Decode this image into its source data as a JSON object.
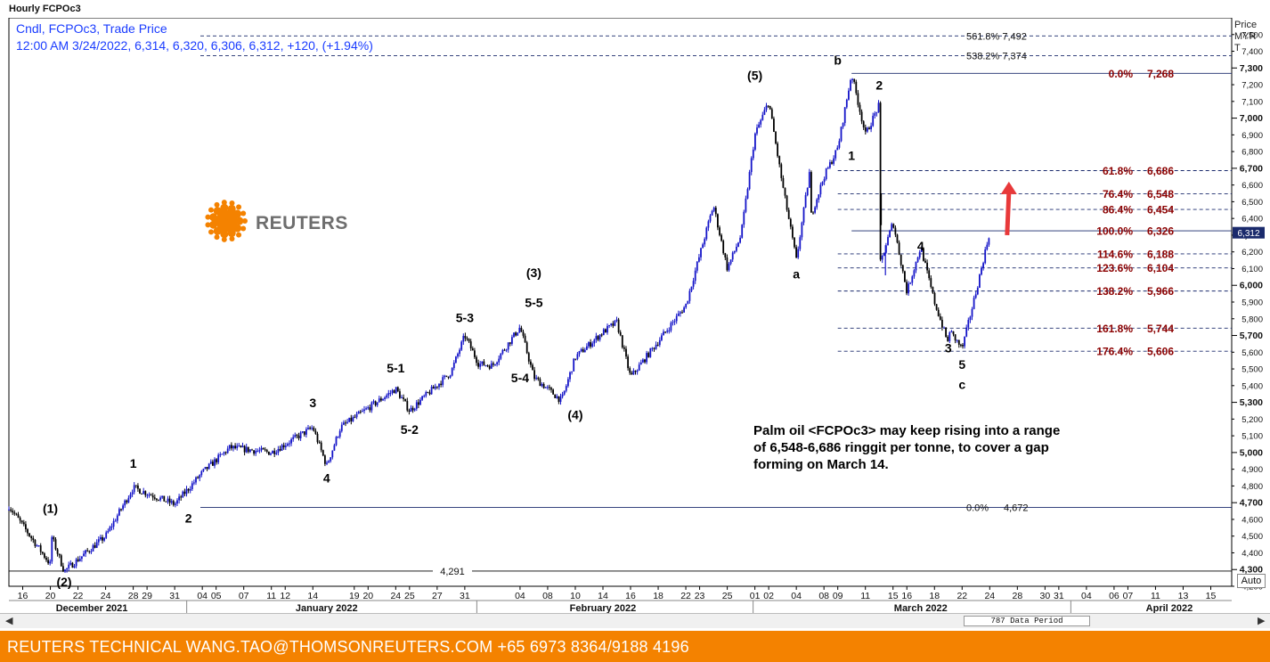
{
  "window": {
    "title": "Hourly FCPOc3"
  },
  "legend": {
    "line1": "Cndl, FCPOc3, Trade Price",
    "line2": "12:00 AM 3/24/2022, 6,314, 6,320, 6,306, 6,312, +120, (+1.94%)"
  },
  "logo": {
    "text": "REUTERS",
    "color": "#f48200"
  },
  "annotation": {
    "lines": [
      "Palm oil <FCPOc3> may keep rising into a range",
      "of 6,548-6,686 ringgit per tonne, to cover a gap",
      "forming on March 14."
    ]
  },
  "yaxis_header": {
    "line1": "Price",
    "line2": "MYR",
    "line3": "T"
  },
  "scrollbar": {
    "period": "787 Data Period",
    "left_arrow": "◀",
    "right_arrow": "▶"
  },
  "auto_button": {
    "label": "Auto"
  },
  "footer": {
    "text": "REUTERS TECHNICAL  WANG.TAO@THOMSONREUTERS.COM  +65 6973 8364/9188 4196"
  },
  "colors": {
    "up": "#1414c8",
    "down": "#000000",
    "fib_label": "#8b0000",
    "level_line": "#1a2a6c",
    "arrow": "#e8393a",
    "footer": "#f48200"
  },
  "chart_data": {
    "type": "candlestick",
    "ylim": [
      4200,
      7600
    ],
    "yticks": [
      4200,
      4300,
      4400,
      4500,
      4600,
      4700,
      4800,
      4900,
      5000,
      5100,
      5200,
      5300,
      5400,
      5500,
      5600,
      5700,
      5800,
      5900,
      6000,
      6100,
      6200,
      6300,
      6400,
      6500,
      6600,
      6700,
      6800,
      6900,
      7000,
      7100,
      7200,
      7300,
      7400,
      7500
    ],
    "ytick_labels": [
      "4,200",
      "4,300",
      "4,400",
      "4,500",
      "4,600",
      "4,700",
      "4,800",
      "4,900",
      "5,000",
      "5,100",
      "5,200",
      "5,300",
      "5,400",
      "5,500",
      "5,600",
      "5,700",
      "5,800",
      "5,900",
      "6,000",
      "6,100",
      "6,200",
      "6,300",
      "6,400",
      "6,500",
      "6,600",
      "6,700",
      "6,800",
      "6,900",
      "7,000",
      "7,100",
      "7,200",
      "7,300",
      "7,400",
      "7,500"
    ],
    "major_ticks": [
      4300,
      4700,
      5000,
      5300,
      5700,
      6000,
      6300,
      6700,
      7000,
      7300
    ],
    "date_ticks": [
      "16",
      "20",
      "22",
      "24",
      "28",
      "29",
      "31",
      "04",
      "05",
      "07",
      "11",
      "12",
      "14",
      "19",
      "20",
      "24",
      "25",
      "27",
      "31",
      "04",
      "08",
      "10",
      "14",
      "16",
      "18",
      "22",
      "23",
      "25",
      "01",
      "02",
      "04",
      "08",
      "09",
      "11",
      "15",
      "16",
      "18",
      "22",
      "24",
      "28",
      "30",
      "31",
      "04",
      "06",
      "07",
      "11",
      "13",
      "15"
    ],
    "months": [
      "December 2021",
      "January 2022",
      "February 2022",
      "March 2022",
      "April 2022"
    ],
    "last_price": "6,312",
    "path": [
      [
        "2021-12-15",
        4680
      ],
      [
        "2021-12-18",
        4330
      ],
      [
        "2021-12-19",
        4520
      ],
      [
        "2021-12-21",
        4290
      ],
      [
        "2021-12-24",
        4500
      ],
      [
        "2021-12-28",
        4790
      ],
      [
        "2021-12-31",
        4690
      ],
      [
        "2022-01-04",
        4880
      ],
      [
        "2022-01-06",
        5030
      ],
      [
        "2022-01-11",
        5000
      ],
      [
        "2022-01-14",
        5150
      ],
      [
        "2022-01-17",
        4920
      ],
      [
        "2022-01-18",
        5150
      ],
      [
        "2022-01-24",
        5380
      ],
      [
        "2022-01-25",
        5250
      ],
      [
        "2022-01-28",
        5480
      ],
      [
        "2022-01-31",
        5700
      ],
      [
        "2022-02-01",
        5530
      ],
      [
        "2022-02-02",
        5520
      ],
      [
        "2022-02-04",
        5750
      ],
      [
        "2022-02-07",
        5450
      ],
      [
        "2022-02-09",
        5310
      ],
      [
        "2022-02-10",
        5570
      ],
      [
        "2022-02-14",
        5720
      ],
      [
        "2022-02-15",
        5780
      ],
      [
        "2022-02-16",
        5450
      ],
      [
        "2022-02-22",
        5880
      ],
      [
        "2022-02-24",
        6480
      ],
      [
        "2022-02-25",
        6100
      ],
      [
        "2022-02-28",
        6300
      ],
      [
        "2022-03-01",
        6900
      ],
      [
        "2022-03-02",
        7100
      ],
      [
        "2022-03-03",
        6600
      ],
      [
        "2022-03-04",
        6150
      ],
      [
        "2022-03-06",
        6700
      ],
      [
        "2022-03-07",
        6400
      ],
      [
        "2022-03-08",
        6650
      ],
      [
        "2022-03-09",
        6820
      ],
      [
        "2022-03-10",
        7268
      ],
      [
        "2022-03-11",
        6900
      ],
      [
        "2022-03-12",
        7080
      ],
      [
        "2022-03-13",
        6690
      ],
      [
        "2022-03-14",
        6550
      ],
      [
        "2022-03-14",
        6110
      ],
      [
        "2022-03-15",
        6380
      ],
      [
        "2022-03-16",
        5960
      ],
      [
        "2022-03-17",
        6230
      ],
      [
        "2022-03-18",
        5900
      ],
      [
        "2022-03-19",
        5650
      ],
      [
        "2022-03-20",
        6180
      ],
      [
        "2022-03-21",
        5740
      ],
      [
        "2022-03-22",
        5620
      ],
      [
        "2022-03-23",
        5960
      ],
      [
        "2022-03-24",
        6320
      ]
    ],
    "gap_candles": [
      [
        "2022-03-14",
        6550,
        6360,
        6530,
        6380
      ],
      [
        "2022-03-14",
        6240,
        6060,
        6110,
        6200
      ]
    ],
    "fib_levels": [
      {
        "value": 7268,
        "label": "0.0%",
        "price": "7,268"
      },
      {
        "value": 6686,
        "label": "61.8%",
        "price": "6,686"
      },
      {
        "value": 6548,
        "label": "76.4%",
        "price": "6,548"
      },
      {
        "value": 6454,
        "label": "86.4%",
        "price": "6,454"
      },
      {
        "value": 6326,
        "label": "100.0%",
        "price": "6,326"
      },
      {
        "value": 6188,
        "label": "114.6%",
        "price": "6,188"
      },
      {
        "value": 6104,
        "label": "123.6%",
        "price": "6,104"
      },
      {
        "value": 5966,
        "label": "138.2%",
        "price": "5,966"
      },
      {
        "value": 5744,
        "label": "161.8%",
        "price": "5,744"
      },
      {
        "value": 5606,
        "label": "176.4%",
        "price": "5,606"
      }
    ],
    "ext_levels": [
      {
        "value": 7492,
        "label": "561.8%",
        "price": "7,492"
      },
      {
        "value": 7374,
        "label": "538.2%",
        "price": "7,374"
      }
    ],
    "base_levels": [
      {
        "value": 4672,
        "label": "0.0%",
        "price": "4,672"
      },
      {
        "value": 4291,
        "label": "",
        "price": "4,291"
      }
    ],
    "wave_labels": [
      {
        "text": "(1)",
        "date": "2021-12-19",
        "y": 4640
      },
      {
        "text": "(2)",
        "date": "2021-12-21",
        "y": 4200
      },
      {
        "text": "1",
        "date": "2021-12-28",
        "y": 4910
      },
      {
        "text": "2",
        "date": "2022-01-01",
        "y": 4580
      },
      {
        "text": "3",
        "date": "2022-01-14",
        "y": 5270
      },
      {
        "text": "4",
        "date": "2022-01-17",
        "y": 4820
      },
      {
        "text": "5-1",
        "date": "2022-01-23",
        "y": 5480
      },
      {
        "text": "5-2",
        "date": "2022-01-25",
        "y": 5110
      },
      {
        "text": "5-3",
        "date": "2022-01-30",
        "y": 5780
      },
      {
        "text": "(3)",
        "date": "2022-02-05",
        "y": 6050
      },
      {
        "text": "5-5",
        "date": "2022-02-05",
        "y": 5870
      },
      {
        "text": "5-4",
        "date": "2022-02-04",
        "y": 5420
      },
      {
        "text": "(4)",
        "date": "2022-02-10",
        "y": 5200
      },
      {
        "text": "(5)",
        "date": "2022-03-01",
        "y": 7230
      },
      {
        "text": "a",
        "date": "2022-03-04",
        "y": 6040
      },
      {
        "text": "b",
        "date": "2022-03-09",
        "y": 7320
      },
      {
        "text": "2",
        "date": "2022-03-12",
        "y": 7170
      },
      {
        "text": "1",
        "date": "2022-03-10",
        "y": 6750
      },
      {
        "text": "4",
        "date": "2022-03-17",
        "y": 6210
      },
      {
        "text": "3",
        "date": "2022-03-19",
        "y": 5600
      },
      {
        "text": "5",
        "date": "2022-03-22",
        "y": 5500
      },
      {
        "text": "c",
        "date": "2022-03-22",
        "y": 5380
      }
    ],
    "target_arrow": {
      "date": "2022-03-25",
      "from": 6300,
      "to": 6620
    }
  }
}
